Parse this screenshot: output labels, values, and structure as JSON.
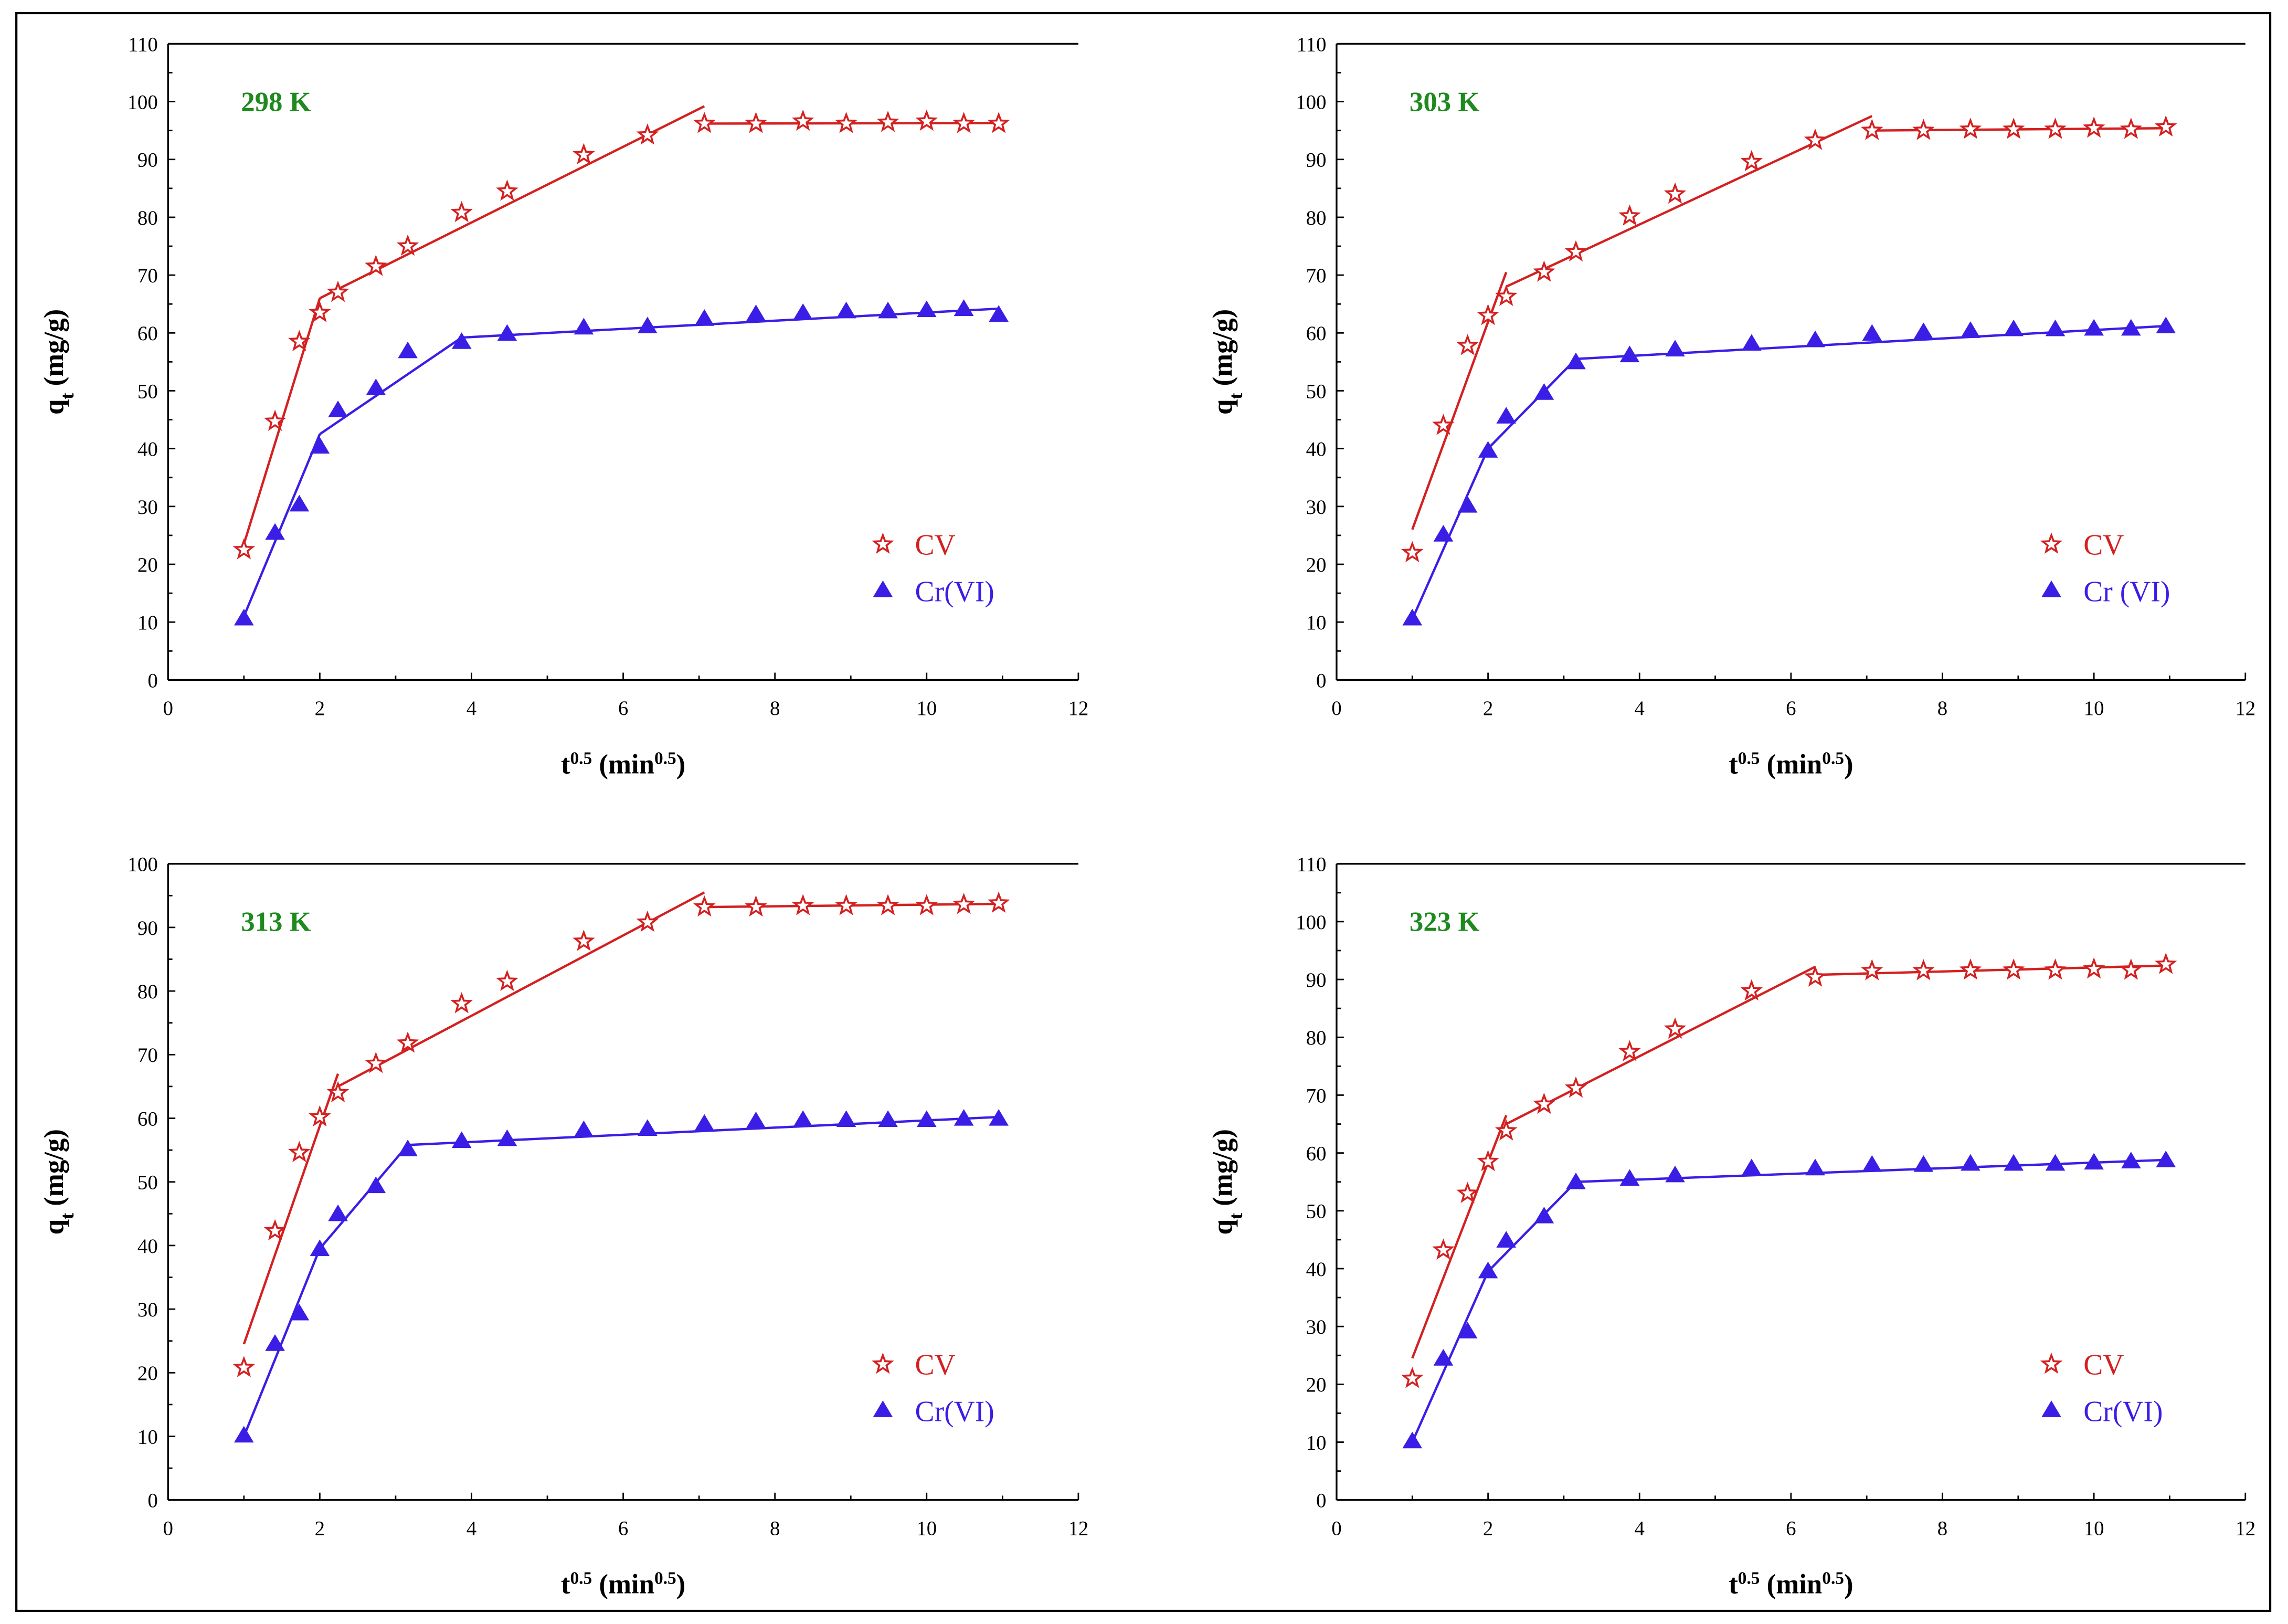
{
  "chart_data": [
    {
      "type": "scatter",
      "title": "298 K",
      "xlabel": {
        "base": "t",
        "sup": "0.5",
        "paren": "min",
        "parensup": "0.5"
      },
      "ylabel": {
        "base": "q",
        "sub": "t",
        "rest": "(mg/g)"
      },
      "xlim": [
        0,
        12
      ],
      "ylim": [
        0,
        110
      ],
      "xticks": [
        0,
        2,
        4,
        6,
        8,
        10,
        12
      ],
      "yticks": [
        0,
        10,
        20,
        30,
        40,
        50,
        60,
        70,
        80,
        90,
        100,
        110
      ],
      "legend_position": "bottom-right",
      "series": [
        {
          "name": "CV",
          "marker": "star",
          "color": "#d42020",
          "x": [
            1.0,
            1.41,
            1.73,
            2.0,
            2.24,
            2.74,
            3.16,
            3.87,
            4.47,
            5.48,
            6.32,
            7.07,
            7.75,
            8.37,
            8.94,
            9.49,
            10.0,
            10.49,
            10.95
          ],
          "y": [
            22.5,
            44.7,
            58.5,
            63.5,
            67,
            71.5,
            75,
            80.8,
            84.5,
            90.8,
            94.2,
            96.2,
            96.2,
            96.6,
            96.2,
            96.4,
            96.6,
            96.2,
            96.2
          ],
          "fit": [
            [
              [
                1.0,
                23.5
              ],
              [
                2.0,
                66.0
              ]
            ],
            [
              [
                2.0,
                66.0
              ],
              [
                7.07,
                99.2
              ]
            ],
            [
              [
                7.07,
                96.2
              ],
              [
                10.95,
                96.3
              ]
            ]
          ]
        },
        {
          "name": "Cr(VI)",
          "marker": "triangle",
          "color": "#3a1ee6",
          "x": [
            1.0,
            1.41,
            1.73,
            2.0,
            2.24,
            2.74,
            3.16,
            3.87,
            4.47,
            5.48,
            6.32,
            7.07,
            7.75,
            8.37,
            8.94,
            9.49,
            10.0,
            10.49,
            10.95
          ],
          "y": [
            10.5,
            25.3,
            30.2,
            40.2,
            46.5,
            50.3,
            56.7,
            58.3,
            59.7,
            60.8,
            61.0,
            62.3,
            63.1,
            63.3,
            63.6,
            63.6,
            63.8,
            64.0,
            63.0
          ],
          "fit": [
            [
              [
                1.0,
                11.0
              ],
              [
                2.0,
                42.5
              ]
            ],
            [
              [
                2.0,
                42.5
              ],
              [
                3.87,
                59.2
              ]
            ],
            [
              [
                3.87,
                59.2
              ],
              [
                10.95,
                64.2
              ]
            ]
          ]
        }
      ]
    },
    {
      "type": "scatter",
      "title": "303 K",
      "xlabel": {
        "base": "t",
        "sup": "0.5",
        "paren": "min",
        "parensup": "0.5"
      },
      "ylabel": {
        "base": "q",
        "sub": "t",
        "rest": "(mg/g)"
      },
      "xlim": [
        0,
        12
      ],
      "ylim": [
        0,
        110
      ],
      "xticks": [
        0,
        2,
        4,
        6,
        8,
        10,
        12
      ],
      "yticks": [
        0,
        10,
        20,
        30,
        40,
        50,
        60,
        70,
        80,
        90,
        100,
        110
      ],
      "legend_position": "bottom-right",
      "series": [
        {
          "name": "CV",
          "marker": "star",
          "color": "#d42020",
          "x": [
            1.0,
            1.41,
            1.73,
            2.0,
            2.24,
            2.74,
            3.16,
            3.87,
            4.47,
            5.48,
            6.32,
            7.07,
            7.75,
            8.37,
            8.94,
            9.49,
            10.0,
            10.49,
            10.95
          ],
          "y": [
            22,
            44,
            57.8,
            63,
            66.3,
            70.5,
            74,
            80.2,
            84,
            89.6,
            93.3,
            95,
            95,
            95.2,
            95.2,
            95.2,
            95.4,
            95.2,
            95.6
          ],
          "fit": [
            [
              [
                1.0,
                26.0
              ],
              [
                2.24,
                70.5
              ]
            ],
            [
              [
                2.24,
                68.0
              ],
              [
                7.07,
                97.5
              ]
            ],
            [
              [
                7.07,
                95.0
              ],
              [
                10.95,
                95.4
              ]
            ]
          ]
        },
        {
          "name": "Cr (VI)",
          "marker": "triangle",
          "color": "#3a1ee6",
          "x": [
            1.0,
            1.41,
            1.73,
            2.0,
            2.24,
            2.74,
            3.16,
            3.87,
            4.47,
            5.48,
            6.32,
            7.07,
            7.75,
            8.37,
            8.94,
            9.49,
            10.0,
            10.49,
            10.95
          ],
          "y": [
            10.5,
            25,
            30,
            39.5,
            45.4,
            49.5,
            54.8,
            56,
            57,
            58,
            58.6,
            59.7,
            60,
            60.2,
            60.5,
            60.5,
            60.6,
            60.6,
            61
          ],
          "fit": [
            [
              [
                1.0,
                10.5
              ],
              [
                2.0,
                40.0
              ]
            ],
            [
              [
                2.0,
                40.0
              ],
              [
                3.16,
                55.5
              ]
            ],
            [
              [
                3.16,
                55.5
              ],
              [
                10.95,
                61.2
              ]
            ]
          ]
        }
      ]
    },
    {
      "type": "scatter",
      "title": "313 K",
      "xlabel": {
        "base": "t",
        "sup": "0.5",
        "paren": "min",
        "parensup": "0.5"
      },
      "ylabel": {
        "base": "q",
        "sub": "t",
        "rest": "(mg/g)"
      },
      "xlim": [
        0,
        12
      ],
      "ylim": [
        0,
        100
      ],
      "xticks": [
        0,
        2,
        4,
        6,
        8,
        10,
        12
      ],
      "yticks": [
        0,
        10,
        20,
        30,
        40,
        50,
        60,
        70,
        80,
        90,
        100
      ],
      "legend_position": "bottom-right",
      "series": [
        {
          "name": "CV",
          "marker": "star",
          "color": "#d42020",
          "x": [
            1.0,
            1.41,
            1.73,
            2.0,
            2.24,
            2.74,
            3.16,
            3.87,
            4.47,
            5.48,
            6.32,
            7.07,
            7.75,
            8.37,
            8.94,
            9.49,
            10.0,
            10.49,
            10.95
          ],
          "y": [
            20.8,
            42.3,
            54.6,
            60.2,
            64,
            68.6,
            71.8,
            78,
            81.5,
            87.8,
            90.8,
            93.2,
            93.2,
            93.4,
            93.4,
            93.4,
            93.4,
            93.6,
            93.8
          ],
          "fit": [
            [
              [
                1.0,
                24.5
              ],
              [
                2.24,
                67.0
              ]
            ],
            [
              [
                2.24,
                65.0
              ],
              [
                7.07,
                95.5
              ]
            ],
            [
              [
                7.07,
                93.2
              ],
              [
                10.95,
                93.7
              ]
            ]
          ]
        },
        {
          "name": "Cr(VI)",
          "marker": "triangle",
          "color": "#3a1ee6",
          "x": [
            1.0,
            1.41,
            1.73,
            2.0,
            2.24,
            2.74,
            3.16,
            3.87,
            4.47,
            5.48,
            6.32,
            7.07,
            7.75,
            8.37,
            8.94,
            9.49,
            10.0,
            10.49,
            10.95
          ],
          "y": [
            10,
            24.4,
            29.2,
            39.3,
            44.8,
            49.2,
            55,
            56.3,
            56.6,
            58,
            58.2,
            59,
            59.4,
            59.6,
            59.6,
            59.6,
            59.6,
            59.8,
            59.8
          ],
          "fit": [
            [
              [
                1.0,
                10.0
              ],
              [
                2.0,
                39.5
              ]
            ],
            [
              [
                2.0,
                39.5
              ],
              [
                3.16,
                55.8
              ]
            ],
            [
              [
                3.16,
                55.8
              ],
              [
                10.95,
                60.2
              ]
            ]
          ]
        }
      ]
    },
    {
      "type": "scatter",
      "title": "323 K",
      "xlabel": {
        "base": "t",
        "sup": "0.5",
        "paren": "min",
        "parensup": "0.5"
      },
      "ylabel": {
        "base": "q",
        "sub": "t",
        "rest": "(mg/g)"
      },
      "xlim": [
        0,
        12
      ],
      "ylim": [
        0,
        110
      ],
      "xticks": [
        0,
        2,
        4,
        6,
        8,
        10,
        12
      ],
      "yticks": [
        0,
        10,
        20,
        30,
        40,
        50,
        60,
        70,
        80,
        90,
        100,
        110
      ],
      "legend_position": "bottom-right",
      "series": [
        {
          "name": "CV",
          "marker": "star",
          "color": "#d42020",
          "x": [
            1.0,
            1.41,
            1.73,
            2.0,
            2.24,
            2.74,
            3.16,
            3.87,
            4.47,
            5.48,
            6.32,
            7.07,
            7.75,
            8.37,
            8.94,
            9.49,
            10.0,
            10.49,
            10.95
          ],
          "y": [
            21,
            43.2,
            53,
            58.5,
            63.8,
            68.4,
            71.2,
            77.5,
            81.4,
            88,
            90.4,
            91.5,
            91.5,
            91.6,
            91.6,
            91.6,
            91.8,
            91.6,
            92.6
          ],
          "fit": [
            [
              [
                1.0,
                24.5
              ],
              [
                2.24,
                66.5
              ]
            ],
            [
              [
                2.24,
                65.0
              ],
              [
                6.32,
                92.2
              ]
            ],
            [
              [
                6.32,
                90.8
              ],
              [
                10.95,
                92.4
              ]
            ]
          ]
        },
        {
          "name": "Cr(VI)",
          "marker": "triangle",
          "color": "#3a1ee6",
          "x": [
            1.0,
            1.41,
            1.73,
            2.0,
            2.24,
            2.74,
            3.16,
            3.87,
            4.47,
            5.48,
            6.32,
            7.07,
            7.75,
            8.37,
            8.94,
            9.49,
            10.0,
            10.49,
            10.95
          ],
          "y": [
            10,
            24.3,
            29,
            39.4,
            44.7,
            48.9,
            54.8,
            55.4,
            56,
            57.2,
            57.2,
            57.8,
            57.8,
            58,
            58,
            58,
            58.2,
            58.4,
            58.6
          ],
          "fit": [
            [
              [
                1.0,
                10.0
              ],
              [
                2.0,
                39.5
              ]
            ],
            [
              [
                2.0,
                39.5
              ],
              [
                3.16,
                55.0
              ]
            ],
            [
              [
                3.16,
                55.0
              ],
              [
                10.95,
                58.8
              ]
            ]
          ]
        }
      ]
    }
  ]
}
